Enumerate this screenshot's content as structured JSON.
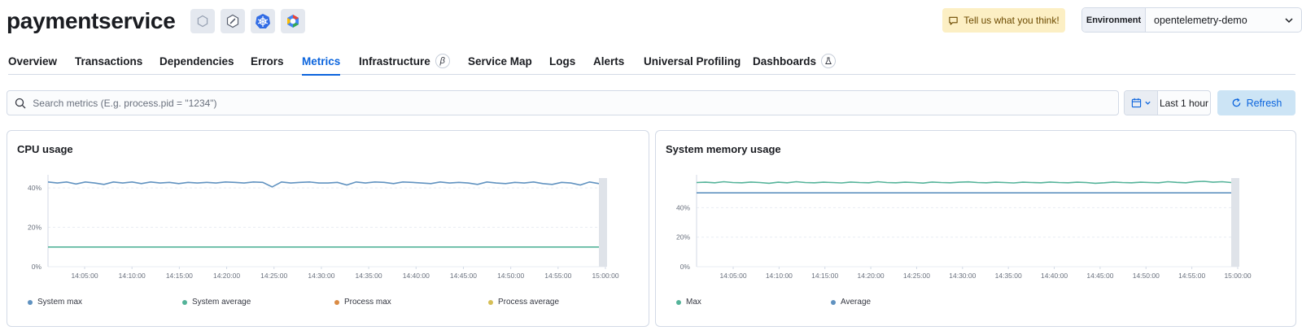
{
  "header": {
    "title": "paymentservice",
    "badges": [
      "service-icon",
      "runtime-icon",
      "kubernetes-icon",
      "cloud-provider-icon"
    ],
    "feedback_label": "Tell us what you think!",
    "environment": {
      "label": "Environment",
      "value": "opentelemetry-demo"
    }
  },
  "tabs": [
    {
      "label": "Overview"
    },
    {
      "label": "Transactions"
    },
    {
      "label": "Dependencies"
    },
    {
      "label": "Errors"
    },
    {
      "label": "Metrics",
      "active": true
    },
    {
      "label": "Infrastructure",
      "pill": "β"
    },
    {
      "label": "Service Map"
    },
    {
      "label": "Logs"
    },
    {
      "label": "Alerts"
    },
    {
      "label": "Universal Profiling"
    },
    {
      "label": "Dashboards",
      "pill": "flask"
    }
  ],
  "search": {
    "placeholder": "Search metrics (E.g. process.pid = \"1234\")"
  },
  "date_picker": {
    "label": "Last 1 hour"
  },
  "refresh_label": "Refresh",
  "colors": {
    "accent": "#0b64dd",
    "blue_series": "#6092c0",
    "green_series": "#54b399",
    "orange_series": "#da8b45",
    "yellow_series": "#d6bf57"
  },
  "chart_data": [
    {
      "type": "line",
      "title": "CPU usage",
      "x_ticks": [
        "14:05:00",
        "14:10:00",
        "14:15:00",
        "14:20:00",
        "14:25:00",
        "14:30:00",
        "14:35:00",
        "14:40:00",
        "14:45:00",
        "14:50:00",
        "14:55:00",
        "15:00:00"
      ],
      "y_ticks": [
        "0%",
        "20%",
        "40%"
      ],
      "ylim": [
        0,
        45
      ],
      "series": [
        {
          "name": "System max",
          "color": "#6092c0",
          "values": [
            43,
            42.5,
            43,
            42,
            43,
            42.5,
            41.8,
            43,
            42.5,
            43,
            42.2,
            43,
            42.5,
            42.8,
            42.2,
            42.8,
            42.5,
            42.8,
            42.5,
            43,
            42.8,
            42.5,
            43,
            42.8,
            40.5,
            43,
            42.5,
            42.8,
            43,
            42.5,
            42.5,
            42.8,
            41.5,
            43,
            42.5,
            43,
            42.8,
            42.2,
            43,
            42.8,
            42.5,
            42.2,
            43,
            42.5,
            42.8,
            42.5,
            41.8,
            43,
            42.5,
            42.2,
            42.8,
            42.5,
            43,
            42.2,
            41.8,
            42.8,
            42.5,
            41.5,
            43,
            42.2
          ],
          "visible": true
        },
        {
          "name": "System average",
          "color": "#54b399",
          "values": [
            10,
            10,
            10,
            10,
            10,
            10,
            10,
            10,
            10,
            10,
            10,
            10,
            10,
            10,
            10,
            10,
            10,
            10,
            10,
            10,
            10,
            10,
            10,
            10,
            10,
            10,
            10,
            10,
            10,
            10,
            10,
            10,
            10,
            10,
            10,
            10,
            10,
            10,
            10,
            10,
            10,
            10,
            10,
            10,
            10,
            10,
            10,
            10,
            10,
            10,
            10,
            10,
            10,
            10,
            10,
            10,
            10,
            10,
            10,
            10
          ],
          "visible": true
        },
        {
          "name": "Process max",
          "color": "#da8b45",
          "values": [],
          "visible": false
        },
        {
          "name": "Process average",
          "color": "#d6bf57",
          "values": [],
          "visible": false
        }
      ]
    },
    {
      "type": "line",
      "title": "System memory usage",
      "x_ticks": [
        "14:05:00",
        "14:10:00",
        "14:15:00",
        "14:20:00",
        "14:25:00",
        "14:30:00",
        "14:35:00",
        "14:40:00",
        "14:45:00",
        "14:50:00",
        "14:55:00",
        "15:00:00"
      ],
      "y_ticks": [
        "0%",
        "20%",
        "40%"
      ],
      "ylim": [
        0,
        60
      ],
      "series": [
        {
          "name": "Max",
          "color": "#54b399",
          "values": [
            57,
            57.2,
            56.8,
            57.5,
            57,
            56.8,
            57.3,
            57,
            56.5,
            57.2,
            56.8,
            57.5,
            57,
            56.8,
            57.2,
            57,
            56.7,
            57.3,
            57,
            56.8,
            57.5,
            57,
            56.8,
            57.2,
            57,
            56.6,
            57.3,
            57,
            56.8,
            57.2,
            57.4,
            57,
            56.8,
            57.2,
            57,
            56.7,
            57.2,
            57,
            56.8,
            57.3,
            57,
            56.8,
            57.2,
            57,
            56.5,
            56.8,
            57.3,
            57,
            56.8,
            57.2,
            57,
            56.8,
            57.5,
            57.1,
            56.8,
            57.6,
            57.8,
            57.2,
            57.5,
            57
          ],
          "visible": true
        },
        {
          "name": "Average",
          "color": "#6092c0",
          "values": [
            50,
            50,
            50,
            50,
            50,
            50,
            50,
            50,
            50,
            50,
            50,
            50,
            50,
            50,
            50,
            50,
            50,
            50,
            50,
            50,
            50,
            50,
            50,
            50,
            50,
            50,
            50,
            50,
            50,
            50,
            50,
            50,
            50,
            50,
            50,
            50,
            50,
            50,
            50,
            50,
            50,
            50,
            50,
            50,
            50,
            50,
            50,
            50,
            50,
            50,
            50,
            50,
            50,
            50,
            50,
            50,
            50,
            50,
            50,
            50
          ],
          "visible": true
        }
      ]
    }
  ]
}
